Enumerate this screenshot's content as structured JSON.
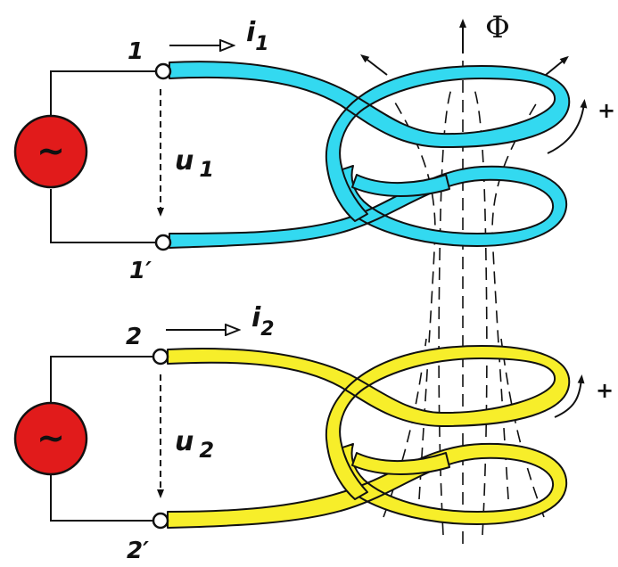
{
  "flux_label": "Φ",
  "coil1": {
    "terminal_top": "1",
    "terminal_bottom": "1′",
    "current": "i",
    "current_sub": "1",
    "voltage": "u",
    "voltage_sub": "1",
    "direction_sign": "+",
    "color": "#33d9f0"
  },
  "coil2": {
    "terminal_top": "2",
    "terminal_bottom": "2′",
    "current": "i",
    "current_sub": "2",
    "voltage": "u",
    "voltage_sub": "2",
    "direction_sign": "+",
    "color": "#f7ee2a"
  },
  "source": {
    "symbol": "~",
    "color": "#e11b1b"
  }
}
